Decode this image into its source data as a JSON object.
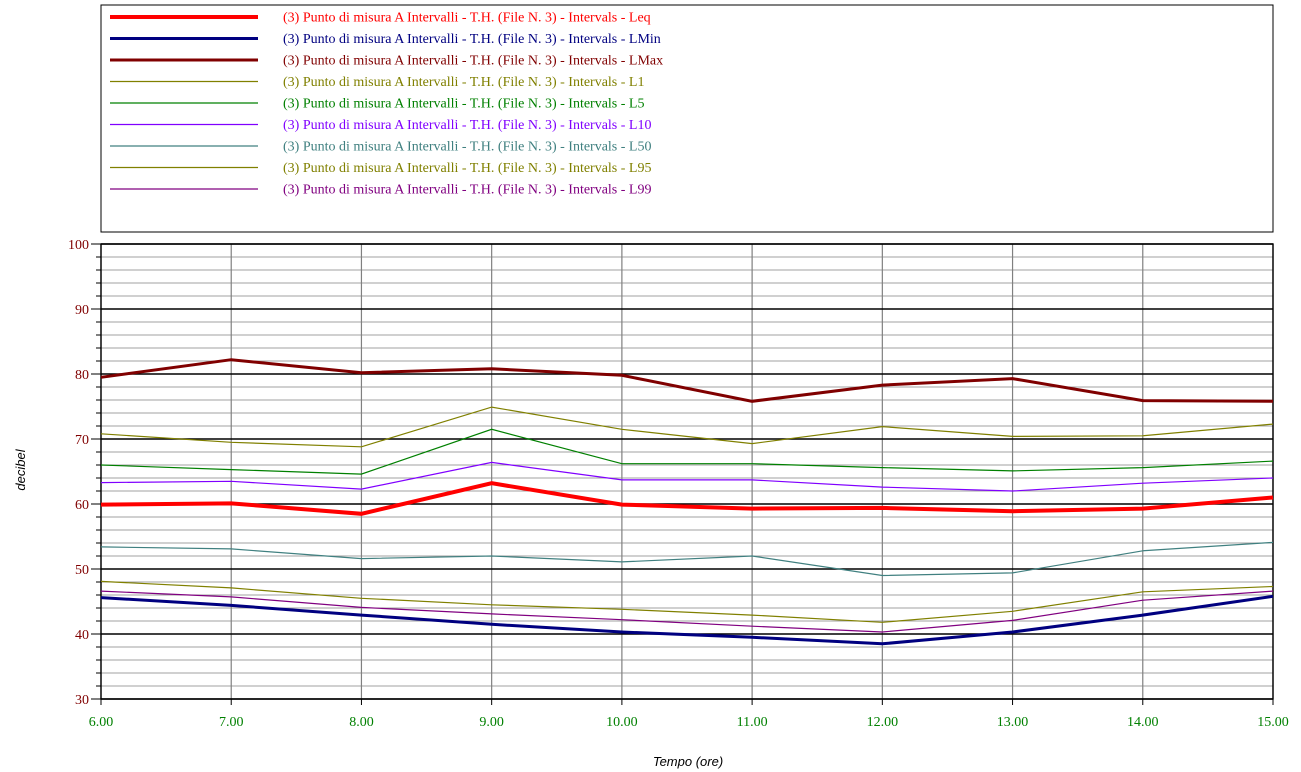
{
  "chart_data": {
    "type": "line",
    "xlabel": "Tempo (ore)",
    "ylabel": "decibel",
    "xlim": [
      6,
      15
    ],
    "ylim": [
      30,
      100
    ],
    "grid": true,
    "legend_position": "top",
    "x": [
      6,
      7,
      8,
      9,
      10,
      11,
      12,
      13,
      14,
      15
    ],
    "x_tick_labels": [
      "6.00",
      "7.00",
      "8.00",
      "9.00",
      "10.00",
      "11.00",
      "12.00",
      "13.00",
      "14.00",
      "15.00"
    ],
    "y_tick_labels": [
      "30",
      "40",
      "50",
      "60",
      "70",
      "80",
      "90",
      "100"
    ],
    "y_ticks": [
      30,
      40,
      50,
      60,
      70,
      80,
      90,
      100
    ],
    "series": [
      {
        "name": "(3) Punto di misura A  Intervalli - T.H.  (File N. 3) - Intervals - Leq",
        "color": "#ff0000",
        "width": 4,
        "values": [
          59.9,
          60.1,
          58.5,
          63.2,
          59.9,
          59.3,
          59.4,
          58.9,
          59.3,
          61.0
        ]
      },
      {
        "name": "(3) Punto di misura A  Intervalli - T.H.  (File N. 3) - Intervals - LMin",
        "color": "#000080",
        "width": 3,
        "values": [
          45.6,
          44.4,
          42.9,
          41.5,
          40.3,
          39.5,
          38.5,
          40.3,
          42.9,
          45.8
        ]
      },
      {
        "name": "(3) Punto di misura A  Intervalli - T.H.  (File N. 3) - Intervals - LMax",
        "color": "#800000",
        "width": 3,
        "values": [
          79.5,
          82.2,
          80.2,
          80.8,
          79.8,
          75.8,
          78.3,
          79.3,
          75.9,
          75.8
        ]
      },
      {
        "name": "(3) Punto di misura A  Intervalli - T.H.  (File N. 3) - Intervals - L1",
        "color": "#808000",
        "width": 1.2,
        "values": [
          70.8,
          69.5,
          68.8,
          74.9,
          71.5,
          69.3,
          71.9,
          70.4,
          70.5,
          72.3
        ]
      },
      {
        "name": "(3) Punto di misura A  Intervalli - T.H.  (File N. 3) - Intervals - L5",
        "color": "#008000",
        "width": 1.2,
        "values": [
          66.0,
          65.3,
          64.6,
          71.5,
          66.2,
          66.2,
          65.6,
          65.1,
          65.6,
          66.6
        ]
      },
      {
        "name": "(3) Punto di misura A  Intervalli - T.H.  (File N. 3) - Intervals - L10",
        "color": "#8000ff",
        "width": 1.2,
        "values": [
          63.3,
          63.5,
          62.3,
          66.4,
          63.7,
          63.7,
          62.6,
          62.0,
          63.2,
          64.0
        ]
      },
      {
        "name": "(3) Punto di misura A  Intervalli - T.H.  (File N. 3) - Intervals - L50",
        "color": "#408080",
        "width": 1.2,
        "values": [
          53.4,
          53.1,
          51.6,
          52.0,
          51.1,
          52.0,
          49.0,
          49.4,
          52.8,
          54.1
        ]
      },
      {
        "name": "(3) Punto di misura A  Intervalli - T.H.  (File N. 3) - Intervals - L95",
        "color": "#808000",
        "width": 1.2,
        "values": [
          48.1,
          47.1,
          45.5,
          44.5,
          43.8,
          42.9,
          41.8,
          43.5,
          46.5,
          47.3
        ]
      },
      {
        "name": "(3) Punto di misura A  Intervalli - T.H.  (File N. 3) - Intervals - L99",
        "color": "#800080",
        "width": 1.2,
        "values": [
          46.6,
          45.7,
          44.1,
          43.1,
          42.2,
          41.2,
          40.3,
          42.1,
          45.2,
          46.6
        ]
      }
    ],
    "colors": {
      "y_tick_text": "#800000",
      "x_tick_text": "#008000",
      "axis_label_text": "#000000",
      "major_grid": "#000000",
      "minor_grid": "#a0a0a0"
    }
  }
}
